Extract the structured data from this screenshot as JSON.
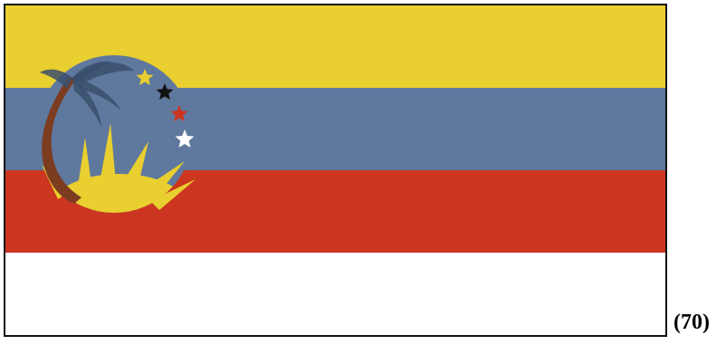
{
  "figure": {
    "caption": "(70)"
  },
  "flag": {
    "stripes": [
      {
        "name": "yellow",
        "color": "#E9CF2F"
      },
      {
        "name": "blue",
        "color": "#5F789E"
      },
      {
        "name": "red",
        "color": "#CC3620"
      },
      {
        "name": "white",
        "color": "#FFFFFF"
      }
    ],
    "emblem": {
      "disc_color": "#5F789E",
      "sun_color": "#E9CF2F",
      "palm_trunk_color": "#7B3C20",
      "palm_frond_color": "#3A4F6C",
      "stars": [
        {
          "color": "#E9CF2F",
          "icon": "star-icon"
        },
        {
          "color": "#111111",
          "icon": "star-icon"
        },
        {
          "color": "#CC3620",
          "icon": "star-icon"
        },
        {
          "color": "#FFFFFF",
          "icon": "star-icon"
        }
      ]
    }
  }
}
